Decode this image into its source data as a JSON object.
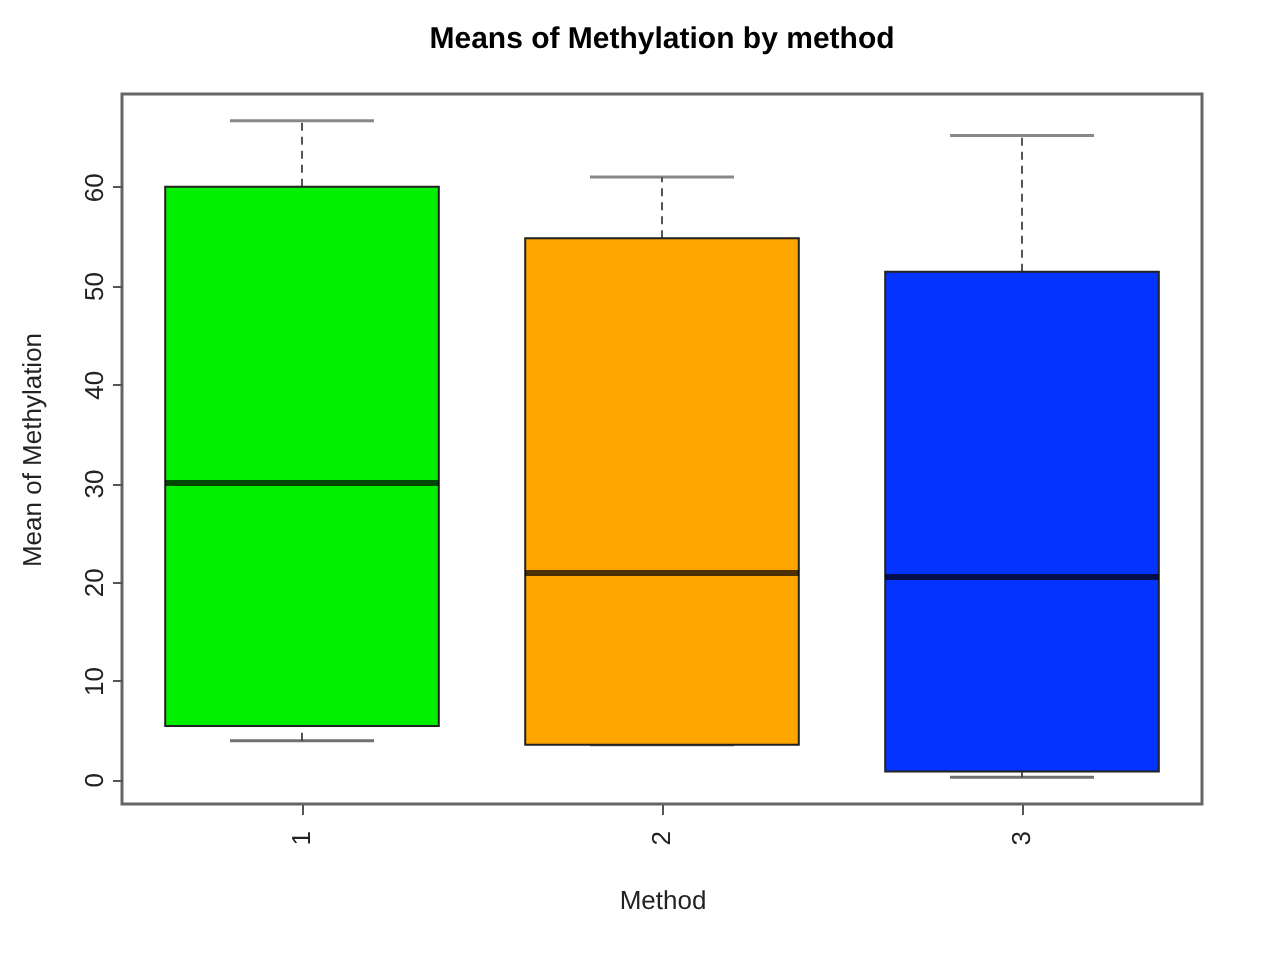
{
  "chart_data": {
    "type": "box",
    "title": "Means of Methylation by method",
    "xlabel": "Method",
    "ylabel": "Mean of Methylation",
    "categories": [
      "1",
      "2",
      "3"
    ],
    "boxes": [
      {
        "low": 3.9,
        "q1": 5.4,
        "median": 30,
        "q3": 60,
        "high": 66.7
      },
      {
        "low": 3.5,
        "q1": 3.5,
        "median": 20.9,
        "q3": 54.8,
        "high": 61.0
      },
      {
        "low": 0.2,
        "q1": 0.8,
        "median": 20.5,
        "q3": 51.4,
        "high": 65.2
      }
    ],
    "colors": [
      "#00f000",
      "#ffa500",
      "#0433ff"
    ],
    "ylim": [
      -2.5,
      69.4
    ],
    "yticks": [
      0,
      10,
      20,
      30,
      40,
      50,
      60
    ],
    "grid": false,
    "legend": false
  }
}
